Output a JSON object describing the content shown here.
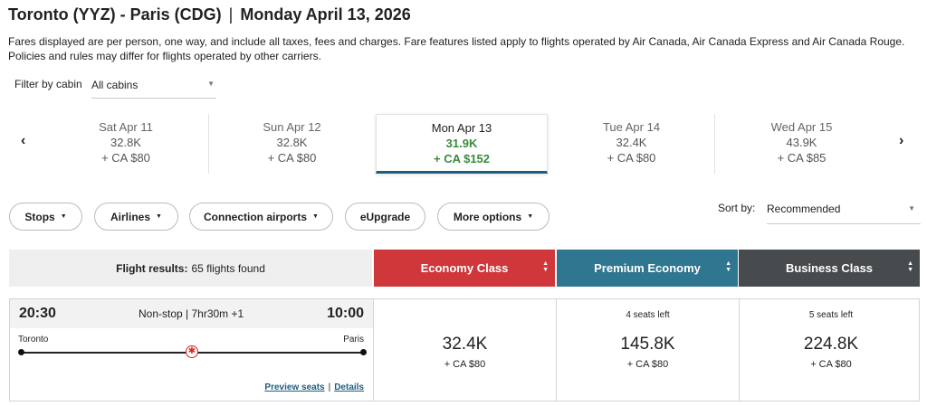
{
  "header": {
    "route": "Toronto (YYZ) - Paris (CDG)",
    "separator": "|",
    "date": "Monday April 13, 2026"
  },
  "disclaimer": "Fares displayed are per person, one way, and include all taxes, fees and charges. Fare features listed apply to flights operated by Air Canada, Air Canada Express and Air Canada Rouge. Policies and rules may differ for flights operated by other carriers.",
  "filter": {
    "label": "Filter by cabin",
    "value": "All cabins"
  },
  "carousel": {
    "prev_icon": "‹",
    "next_icon": "›",
    "days": [
      {
        "date": "Sat Apr 11",
        "points": "32.8K",
        "cash": "+ CA $80"
      },
      {
        "date": "Sun Apr 12",
        "points": "32.8K",
        "cash": "+ CA $80"
      },
      {
        "date": "Mon Apr 13",
        "points": "31.9K",
        "cash": "+ CA $152",
        "selected": true
      },
      {
        "date": "Tue Apr 14",
        "points": "32.4K",
        "cash": "+ CA $80"
      },
      {
        "date": "Wed Apr 15",
        "points": "43.9K",
        "cash": "+ CA $85"
      }
    ]
  },
  "filters": {
    "stops": "Stops",
    "airlines": "Airlines",
    "connection": "Connection airports",
    "eupgrade": "eUpgrade",
    "more": "More options"
  },
  "sort": {
    "label": "Sort by:",
    "value": "Recommended"
  },
  "results": {
    "label": "Flight results:",
    "count": "65 flights found"
  },
  "cabins": [
    {
      "name": "Economy Class",
      "color": "#d0373b"
    },
    {
      "name": "Premium Economy",
      "color": "#2f7690"
    },
    {
      "name": "Business Class",
      "color": "#474b4e"
    }
  ],
  "flight": {
    "departure": "20:30",
    "arrival": "10:00",
    "duration": "Non-stop | 7hr30m +1",
    "from": "Toronto",
    "to": "Paris",
    "preview_seats": "Preview seats",
    "links_separator": "|",
    "details": "Details",
    "fares": [
      {
        "seats": "",
        "points": "32.4K",
        "cash": "+ CA $80"
      },
      {
        "seats": "4 seats left",
        "points": "145.8K",
        "cash": "+ CA $80"
      },
      {
        "seats": "5 seats left",
        "points": "224.8K",
        "cash": "+ CA $80"
      }
    ]
  }
}
